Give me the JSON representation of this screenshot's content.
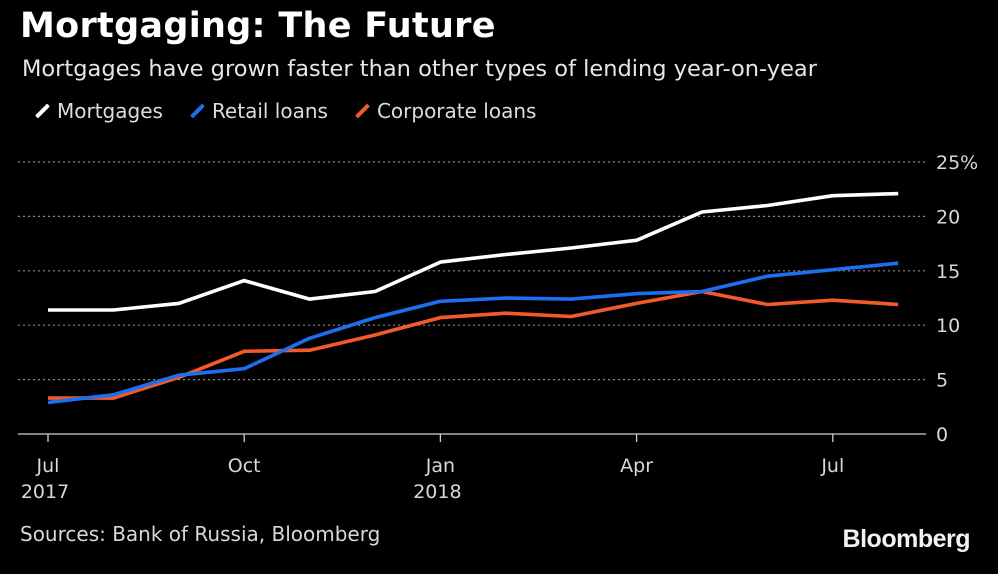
{
  "chart_data": {
    "type": "line",
    "title": "Mortgaging: The Future",
    "subtitle": "Mortgages have grown faster than other types of lending year-on-year",
    "x": [
      "2017-07",
      "2017-08",
      "2017-09",
      "2017-10",
      "2017-11",
      "2017-12",
      "2018-01",
      "2018-02",
      "2018-03",
      "2018-04",
      "2018-05",
      "2018-06",
      "2018-07",
      "2018-08"
    ],
    "x_ticks": [
      {
        "line1": "Jul",
        "line2": "2017"
      },
      {
        "line1": "Oct",
        "line2": ""
      },
      {
        "line1": "Jan",
        "line2": "2018"
      },
      {
        "line1": "Apr",
        "line2": ""
      },
      {
        "line1": "Jul",
        "line2": ""
      }
    ],
    "y_ticks": [
      "25%",
      "20",
      "15",
      "10",
      "5",
      "0"
    ],
    "ylim": [
      0,
      25
    ],
    "grid": true,
    "legend_position": "top-left",
    "series": [
      {
        "name": "Mortgages",
        "color": "#ffffff",
        "values": [
          11.4,
          11.4,
          12.0,
          14.1,
          12.4,
          13.1,
          15.8,
          16.5,
          17.1,
          17.8,
          20.4,
          21.0,
          21.9,
          22.1
        ]
      },
      {
        "name": "Retail loans",
        "color": "#1e6ff0",
        "values": [
          2.9,
          3.6,
          5.4,
          6.0,
          8.8,
          10.7,
          12.2,
          12.5,
          12.4,
          12.9,
          13.1,
          14.5,
          15.1,
          15.7
        ]
      },
      {
        "name": "Corporate loans",
        "color": "#f4592a",
        "values": [
          3.3,
          3.3,
          5.2,
          7.6,
          7.7,
          9.1,
          10.7,
          11.1,
          10.8,
          12.0,
          13.1,
          11.9,
          12.3,
          11.9
        ]
      }
    ]
  },
  "footer": {
    "source": "Sources: Bank of Russia, Bloomberg",
    "brand": "Bloomberg"
  }
}
